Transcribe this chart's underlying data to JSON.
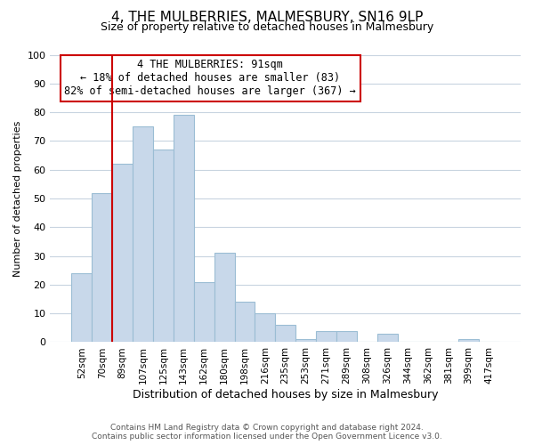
{
  "title": "4, THE MULBERRIES, MALMESBURY, SN16 9LP",
  "subtitle": "Size of property relative to detached houses in Malmesbury",
  "xlabel": "Distribution of detached houses by size in Malmesbury",
  "ylabel": "Number of detached properties",
  "footer_line1": "Contains HM Land Registry data © Crown copyright and database right 2024.",
  "footer_line2": "Contains public sector information licensed under the Open Government Licence v3.0.",
  "bin_labels": [
    "52sqm",
    "70sqm",
    "89sqm",
    "107sqm",
    "125sqm",
    "143sqm",
    "162sqm",
    "180sqm",
    "198sqm",
    "216sqm",
    "235sqm",
    "253sqm",
    "271sqm",
    "289sqm",
    "308sqm",
    "326sqm",
    "344sqm",
    "362sqm",
    "381sqm",
    "399sqm",
    "417sqm"
  ],
  "bar_heights": [
    24,
    52,
    62,
    75,
    67,
    79,
    21,
    31,
    14,
    10,
    6,
    1,
    4,
    4,
    0,
    3,
    0,
    0,
    0,
    1,
    0
  ],
  "bar_color": "#c8d8ea",
  "bar_edgecolor": "#9bbdd4",
  "vline_x_index": 2,
  "vline_color": "#cc0000",
  "annotation_title": "4 THE MULBERRIES: 91sqm",
  "annotation_line2": "← 18% of detached houses are smaller (83)",
  "annotation_line3": "82% of semi-detached houses are larger (367) →",
  "annotation_box_edgecolor": "#cc0000",
  "ylim": [
    0,
    100
  ],
  "yticks": [
    0,
    10,
    20,
    30,
    40,
    50,
    60,
    70,
    80,
    90,
    100
  ],
  "background_color": "#ffffff",
  "grid_color": "#c8d4e0",
  "title_fontsize": 11,
  "subtitle_fontsize": 9,
  "ylabel_fontsize": 8,
  "xlabel_fontsize": 9,
  "tick_fontsize": 8,
  "xtick_fontsize": 7.5
}
